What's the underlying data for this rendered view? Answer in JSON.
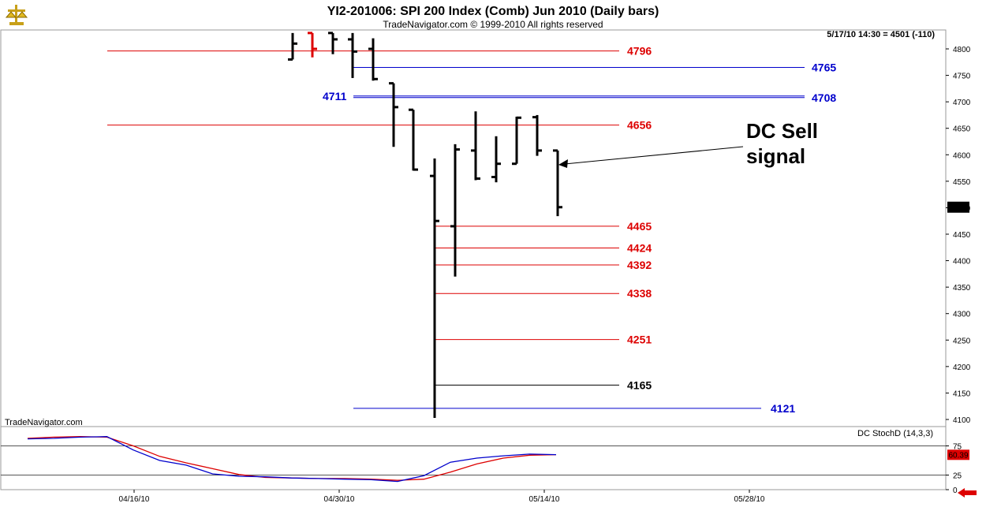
{
  "header": {
    "title": "YI2-201006:  SPI 200 Index (Comb) Jun 2010  (Daily bars)",
    "copyright": "TradeNavigator.com © 1999-2010 All rights reserved",
    "quote": "5/17/10 14:30 = 4501 (-110)",
    "watermark": "TradeNavigator.com",
    "logo_icon": "scales-logo-icon"
  },
  "annotation": {
    "line1": "DC Sell",
    "line2": "signal"
  },
  "colors": {
    "red": "#dd0000",
    "blue": "#0000cc",
    "black": "#000000",
    "grid": "#c8c8c8"
  },
  "chart_data": [
    {
      "type": "ohlc",
      "title": "YI2-201006:  SPI 200 Index (Comb) Jun 2010  (Daily bars)",
      "x": [
        "04/16/10",
        "04/30/10",
        "05/14/10",
        "05/28/10"
      ],
      "ylim": [
        4100,
        4820
      ],
      "y_ticks": [
        4100,
        4150,
        4200,
        4250,
        4300,
        4350,
        4400,
        4450,
        4500,
        4550,
        4600,
        4650,
        4700,
        4750,
        4800
      ],
      "last_price": "4501",
      "bars": [
        {
          "open": 4780,
          "high": 4830,
          "low": 4780,
          "close": 4810
        },
        {
          "open": 4830,
          "high": 4830,
          "low": 4784,
          "close": 4800
        },
        {
          "open": 4830,
          "high": 4830,
          "low": 4790,
          "close": 4818
        },
        {
          "open": 4818,
          "high": 4830,
          "low": 4745,
          "close": 4795
        },
        {
          "open": 4800,
          "high": 4820,
          "low": 4740,
          "close": 4743
        },
        {
          "open": 4735,
          "high": 4735,
          "low": 4615,
          "close": 4690
        },
        {
          "open": 4685,
          "high": 4685,
          "low": 4570,
          "close": 4572
        },
        {
          "open": 4560,
          "high": 4593,
          "low": 4103,
          "close": 4475
        },
        {
          "open": 4465,
          "high": 4620,
          "low": 4370,
          "close": 4610
        },
        {
          "open": 4608,
          "high": 4682,
          "low": 4552,
          "close": 4555
        },
        {
          "open": 4558,
          "high": 4635,
          "low": 4548,
          "close": 4583
        },
        {
          "open": 4583,
          "high": 4672,
          "low": 4583,
          "close": 4670
        },
        {
          "open": 4671,
          "high": 4675,
          "low": 4598,
          "close": 4608
        },
        {
          "open": 4608,
          "high": 4608,
          "low": 4484,
          "close": 4501
        }
      ],
      "levels": [
        {
          "label": "4796",
          "value": 4796,
          "color": "red"
        },
        {
          "label": "4765",
          "value": 4765,
          "color": "blue"
        },
        {
          "label": "4711",
          "value": 4711,
          "color": "blue"
        },
        {
          "label": "4708",
          "value": 4708,
          "color": "blue"
        },
        {
          "label": "4656",
          "value": 4656,
          "color": "red"
        },
        {
          "label": "4465",
          "value": 4465,
          "color": "red"
        },
        {
          "label": "4424",
          "value": 4424,
          "color": "red"
        },
        {
          "label": "4392",
          "value": 4392,
          "color": "red"
        },
        {
          "label": "4338",
          "value": 4338,
          "color": "red"
        },
        {
          "label": "4251",
          "value": 4251,
          "color": "red"
        },
        {
          "label": "4165",
          "value": 4165,
          "color": "black"
        },
        {
          "label": "4121",
          "value": 4121,
          "color": "blue"
        }
      ]
    },
    {
      "type": "line",
      "title": "DC StochD (14,3,3)",
      "ylim": [
        0,
        100
      ],
      "y_ticks": [
        0,
        25,
        75
      ],
      "last_value": "60.39",
      "series": [
        {
          "color": "red",
          "values": [
            88,
            90,
            91,
            90,
            75,
            57,
            46,
            36,
            26,
            21,
            20,
            19,
            19,
            18,
            16,
            18,
            30,
            44,
            54,
            59,
            60
          ]
        },
        {
          "color": "blue",
          "values": [
            87,
            88,
            90,
            91,
            68,
            50,
            42,
            27,
            23,
            22,
            20,
            19,
            18,
            17,
            14,
            24,
            47,
            54,
            58,
            61,
            60
          ]
        }
      ]
    }
  ]
}
